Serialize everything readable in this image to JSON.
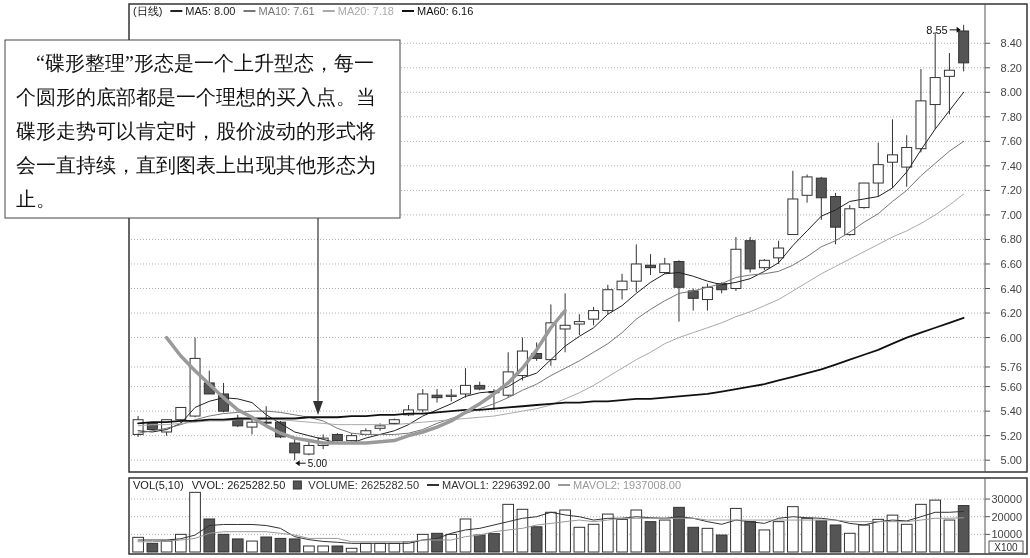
{
  "chart_data": [
    {
      "type": "candlestick",
      "title": "(日线)",
      "legend": "top left",
      "grid": "y",
      "categories": [
        null,
        null,
        null,
        null,
        null,
        null,
        null,
        null,
        null,
        null,
        null,
        null,
        null,
        null,
        null,
        null,
        null,
        null,
        null,
        null,
        null,
        null,
        null,
        null,
        null,
        null,
        null,
        null,
        null,
        null,
        null,
        null,
        null,
        null,
        null,
        null,
        null,
        null,
        null,
        null,
        null,
        null,
        null,
        null,
        null,
        null,
        null,
        null,
        null,
        null,
        null,
        null,
        null,
        null,
        null,
        null,
        null,
        null,
        null
      ],
      "ohlc": [
        [
          5.21,
          5.36,
          5.19,
          5.33
        ],
        [
          5.3,
          5.31,
          5.24,
          5.25
        ],
        [
          5.23,
          5.33,
          5.2,
          5.33
        ],
        [
          5.33,
          5.43,
          5.3,
          5.43
        ],
        [
          5.36,
          6.0,
          5.35,
          5.83
        ],
        [
          5.63,
          5.73,
          5.54,
          5.54
        ],
        [
          5.54,
          5.63,
          5.39,
          5.4
        ],
        [
          5.33,
          5.37,
          5.27,
          5.28
        ],
        [
          5.27,
          5.36,
          5.21,
          5.31
        ],
        [
          5.31,
          5.44,
          5.27,
          5.31
        ],
        [
          5.31,
          5.32,
          5.18,
          5.19
        ],
        [
          5.14,
          5.19,
          5.0,
          5.06
        ],
        [
          5.05,
          5.16,
          5.04,
          5.12
        ],
        [
          5.12,
          5.21,
          5.09,
          5.18
        ],
        [
          5.21,
          5.22,
          5.15,
          5.16
        ],
        [
          5.16,
          5.22,
          5.15,
          5.2
        ],
        [
          5.21,
          5.26,
          5.2,
          5.24
        ],
        [
          5.26,
          5.3,
          5.24,
          5.28
        ],
        [
          5.3,
          5.34,
          5.29,
          5.33
        ],
        [
          5.37,
          5.45,
          5.36,
          5.41
        ],
        [
          5.41,
          5.58,
          5.39,
          5.54
        ],
        [
          5.53,
          5.58,
          5.47,
          5.51
        ],
        [
          5.52,
          5.58,
          5.48,
          5.53
        ],
        [
          5.54,
          5.75,
          5.51,
          5.61
        ],
        [
          5.61,
          5.64,
          5.57,
          5.58
        ],
        [
          5.56,
          5.58,
          5.41,
          5.55
        ],
        [
          5.53,
          5.88,
          5.51,
          5.72
        ],
        [
          5.69,
          6.0,
          5.65,
          5.89
        ],
        [
          5.87,
          5.96,
          5.81,
          5.83
        ],
        [
          5.82,
          6.27,
          5.77,
          6.12
        ],
        [
          6.07,
          6.36,
          5.88,
          6.1
        ],
        [
          6.11,
          6.19,
          6.02,
          6.13
        ],
        [
          6.15,
          6.25,
          6.1,
          6.22
        ],
        [
          6.22,
          6.43,
          6.19,
          6.39
        ],
        [
          6.39,
          6.52,
          6.31,
          6.46
        ],
        [
          6.46,
          6.76,
          6.37,
          6.6
        ],
        [
          6.59,
          6.68,
          6.51,
          6.57
        ],
        [
          6.53,
          6.65,
          6.52,
          6.6
        ],
        [
          6.62,
          6.63,
          6.13,
          6.41
        ],
        [
          6.38,
          6.4,
          6.22,
          6.32
        ],
        [
          6.31,
          6.44,
          6.22,
          6.41
        ],
        [
          6.44,
          6.45,
          6.36,
          6.39
        ],
        [
          6.4,
          6.82,
          6.38,
          6.72
        ],
        [
          6.79,
          6.82,
          6.53,
          6.56
        ],
        [
          6.57,
          6.64,
          6.55,
          6.63
        ],
        [
          6.65,
          6.79,
          6.6,
          6.73
        ],
        [
          6.84,
          7.36,
          6.84,
          7.13
        ],
        [
          7.16,
          7.33,
          7.1,
          7.31
        ],
        [
          7.3,
          7.31,
          6.96,
          7.14
        ],
        [
          7.15,
          7.18,
          6.76,
          6.9
        ],
        [
          6.84,
          7.08,
          6.83,
          7.05
        ],
        [
          7.06,
          7.26,
          7.05,
          7.26
        ],
        [
          7.26,
          7.59,
          7.15,
          7.41
        ],
        [
          7.43,
          7.78,
          7.22,
          7.49
        ],
        [
          7.39,
          7.65,
          7.23,
          7.55
        ],
        [
          7.54,
          8.19,
          7.51,
          7.93
        ],
        [
          7.9,
          8.49,
          7.7,
          8.12
        ],
        [
          8.13,
          8.32,
          7.82,
          8.18
        ],
        [
          8.5,
          8.55,
          8.17,
          8.24
        ]
      ],
      "series": [
        {
          "name": "MA5: 8.00",
          "type": "line",
          "color": "#222222",
          "values": [
            5.24,
            5.23,
            5.25,
            5.3,
            5.43,
            5.48,
            5.51,
            5.5,
            5.47,
            5.37,
            5.3,
            5.23,
            5.2,
            5.17,
            5.14,
            5.14,
            5.18,
            5.21,
            5.24,
            5.29,
            5.36,
            5.41,
            5.46,
            5.52,
            5.55,
            5.56,
            5.6,
            5.67,
            5.71,
            5.82,
            5.93,
            6.01,
            6.08,
            6.19,
            6.26,
            6.36,
            6.45,
            6.52,
            6.53,
            6.5,
            6.46,
            6.43,
            6.45,
            6.48,
            6.54,
            6.61,
            6.75,
            6.87,
            6.99,
            7.04,
            7.11,
            7.13,
            7.15,
            7.22,
            7.35,
            7.53,
            7.7,
            7.85,
            8.0
          ]
        },
        {
          "name": "MA10: 7.61",
          "type": "line",
          "color": "#777777",
          "values": [
            5.22,
            5.24,
            5.26,
            5.29,
            5.33,
            5.36,
            5.38,
            5.39,
            5.4,
            5.4,
            5.39,
            5.37,
            5.35,
            5.32,
            5.26,
            5.22,
            5.21,
            5.21,
            5.21,
            5.22,
            5.25,
            5.3,
            5.34,
            5.38,
            5.42,
            5.46,
            5.51,
            5.57,
            5.62,
            5.69,
            5.75,
            5.81,
            5.88,
            5.95,
            6.04,
            6.15,
            6.23,
            6.3,
            6.36,
            6.38,
            6.41,
            6.44,
            6.49,
            6.51,
            6.52,
            6.54,
            6.59,
            6.66,
            6.74,
            6.79,
            6.86,
            6.94,
            7.01,
            7.11,
            7.2,
            7.32,
            7.42,
            7.52,
            7.6
          ]
        },
        {
          "name": "MA20: 7.18",
          "type": "line",
          "color": "#aaaaaa",
          "values": [
            5.28,
            5.29,
            5.29,
            5.3,
            5.31,
            5.32,
            5.32,
            5.33,
            5.33,
            5.33,
            5.33,
            5.32,
            5.31,
            5.3,
            5.29,
            5.29,
            5.29,
            5.29,
            5.29,
            5.3,
            5.31,
            5.32,
            5.33,
            5.34,
            5.35,
            5.36,
            5.38,
            5.4,
            5.42,
            5.45,
            5.5,
            5.55,
            5.61,
            5.68,
            5.75,
            5.82,
            5.88,
            5.95,
            6.0,
            6.04,
            6.08,
            6.12,
            6.17,
            6.21,
            6.26,
            6.31,
            6.38,
            6.45,
            6.52,
            6.58,
            6.64,
            6.7,
            6.76,
            6.82,
            6.87,
            6.93,
            7.0,
            7.08,
            7.17
          ]
        },
        {
          "name": "MA60: 6.16",
          "type": "line",
          "color": "#111111",
          "values": [
            5.3,
            5.31,
            5.31,
            5.32,
            5.32,
            5.33,
            5.33,
            5.34,
            5.34,
            5.34,
            5.34,
            5.34,
            5.35,
            5.35,
            5.35,
            5.36,
            5.36,
            5.37,
            5.37,
            5.38,
            5.38,
            5.39,
            5.4,
            5.41,
            5.41,
            5.42,
            5.43,
            5.44,
            5.45,
            5.46,
            5.47,
            5.47,
            5.48,
            5.48,
            5.49,
            5.5,
            5.5,
            5.51,
            5.52,
            5.53,
            5.54,
            5.56,
            5.58,
            5.6,
            5.62,
            5.65,
            5.68,
            5.71,
            5.74,
            5.78,
            5.82,
            5.86,
            5.9,
            5.95,
            6.0,
            6.04,
            6.08,
            6.12,
            6.16
          ]
        },
        {
          "type": "line",
          "color": "#9a9a9a",
          "values": [
            null,
            null,
            6.0,
            5.85,
            5.73,
            5.62,
            5.51,
            5.41,
            5.35,
            5.28,
            5.22,
            5.18,
            5.16,
            5.14,
            5.14,
            5.14,
            5.14,
            5.15,
            5.16,
            5.2,
            5.23,
            5.27,
            5.32,
            5.39,
            5.46,
            5.54,
            5.63,
            5.75,
            5.9,
            6.08,
            6.22,
            null,
            null,
            null,
            null,
            null,
            null,
            null,
            null,
            null,
            null,
            null,
            null,
            null,
            null,
            null,
            null,
            null,
            null,
            null,
            null,
            null,
            null,
            null,
            null,
            null,
            null,
            null,
            null
          ]
        }
      ],
      "ylim": [
        4.92,
        8.72
      ],
      "yticks": [
        {
          "value": 5,
          "label": "5.00"
        },
        {
          "value": 5.2,
          "label": "5.20"
        },
        {
          "value": 5.4,
          "label": "5.40"
        },
        {
          "value": 5.6,
          "label": "5.60"
        },
        {
          "value": 5.76,
          "label": "5.76"
        },
        {
          "value": 6,
          "label": "6.00"
        },
        {
          "value": 6.2,
          "label": "6.20"
        },
        {
          "value": 6.4,
          "label": "6.40"
        },
        {
          "value": 6.6,
          "label": "6.60"
        },
        {
          "value": 6.8,
          "label": "6.80"
        },
        {
          "value": 7,
          "label": "7.00"
        },
        {
          "value": 7.2,
          "label": "7.20"
        },
        {
          "value": 7.4,
          "label": "7.40"
        },
        {
          "value": 7.6,
          "label": "7.60"
        },
        {
          "value": 7.8,
          "label": "7.80"
        },
        {
          "value": 8,
          "label": "8.00"
        },
        {
          "value": 8.2,
          "label": "8.20"
        },
        {
          "value": 8.4,
          "label": "8.40"
        }
      ],
      "annotations": [
        "“碟形整理”形态是一个上升型态，每一个圆形的底部都是一个理想的买入点。当碟形走势可以肯定时，股价波动的形式将会一直持续，直到图表上出现其他形态为止。",
        "5.00",
        "8.55"
      ]
    },
    {
      "type": "bar",
      "title": "VOL(5,10)",
      "subtitle": "VVOL: 2625282.50",
      "legend": "top left",
      "grid": "y",
      "ylabel": "X100",
      "categories": [
        null,
        null,
        null,
        null,
        null,
        null,
        null,
        null,
        null,
        null,
        null,
        null,
        null,
        null,
        null,
        null,
        null,
        null,
        null,
        null,
        null,
        null,
        null,
        null,
        null,
        null,
        null,
        null,
        null,
        null,
        null,
        null,
        null,
        null,
        null,
        null,
        null,
        null,
        null,
        null,
        null,
        null,
        null,
        null,
        null,
        null,
        null,
        null,
        null,
        null,
        null,
        null,
        null,
        null,
        null,
        null,
        null,
        null,
        null
      ],
      "series": [
        {
          "name": "VOLUME: 2625282.50",
          "type": "bar",
          "colors": [
            "#ffffff",
            "#555555",
            "#ffffff",
            "#ffffff",
            "#ffffff",
            "#555555",
            "#555555",
            "#555555",
            "#ffffff",
            "#555555",
            "#555555",
            "#555555",
            "#ffffff",
            "#ffffff",
            "#555555",
            "#ffffff",
            "#ffffff",
            "#ffffff",
            "#ffffff",
            "#ffffff",
            "#ffffff",
            "#555555",
            "#ffffff",
            "#ffffff",
            "#555555",
            "#555555",
            "#ffffff",
            "#ffffff",
            "#555555",
            "#ffffff",
            "#ffffff",
            "#ffffff",
            "#ffffff",
            "#ffffff",
            "#ffffff",
            "#ffffff",
            "#555555",
            "#ffffff",
            "#555555",
            "#555555",
            "#ffffff",
            "#555555",
            "#ffffff",
            "#555555",
            "#ffffff",
            "#ffffff",
            "#ffffff",
            "#ffffff",
            "#555555",
            "#555555",
            "#ffffff",
            "#ffffff",
            "#ffffff",
            "#ffffff",
            "#ffffff",
            "#ffffff",
            "#ffffff",
            "#ffffff",
            "#555555"
          ],
          "values": [
            8300,
            4900,
            6200,
            10000,
            33800,
            18700,
            10000,
            7400,
            6200,
            8500,
            7700,
            7400,
            3400,
            3400,
            3400,
            2100,
            4900,
            4900,
            4900,
            5800,
            10000,
            10600,
            10000,
            18700,
            9600,
            10400,
            27000,
            24200,
            14300,
            22500,
            23800,
            14000,
            15700,
            21500,
            18500,
            23800,
            17200,
            18100,
            25300,
            14000,
            13400,
            9600,
            24700,
            17200,
            12500,
            17200,
            25700,
            19100,
            17700,
            15300,
            10600,
            15300,
            18500,
            20900,
            15700,
            27000,
            29400,
            18100,
            26300
          ]
        },
        {
          "name": "MAVOL1: 2296392.00",
          "type": "line",
          "color": "#333333",
          "values": [
            6800,
            6800,
            6800,
            7500,
            9600,
            15000,
            15600,
            15600,
            15600,
            15000,
            13400,
            8700,
            7000,
            6000,
            5500,
            4900,
            4900,
            4900,
            4900,
            4900,
            6800,
            7700,
            10600,
            12500,
            13400,
            15300,
            17200,
            19100,
            20000,
            22500,
            21000,
            20000,
            18100,
            19100,
            19100,
            20000,
            19400,
            19100,
            20000,
            19100,
            17200,
            15700,
            18100,
            17200,
            16200,
            19100,
            20000,
            19400,
            19100,
            18100,
            16200,
            15300,
            17200,
            18100,
            17600,
            20000,
            22500,
            22500,
            23000
          ]
        },
        {
          "name": "MAVOL2: 1937008.00",
          "type": "line",
          "color": "#999999",
          "values": [
            5800,
            5800,
            6200,
            6800,
            7700,
            10600,
            11500,
            11500,
            11500,
            11500,
            10600,
            9600,
            7700,
            7700,
            7700,
            5800,
            5800,
            5800,
            5800,
            5800,
            6800,
            6800,
            6800,
            8700,
            9600,
            11500,
            12500,
            13400,
            15300,
            16200,
            17200,
            18100,
            17200,
            18100,
            19100,
            19100,
            19100,
            19100,
            19100,
            19100,
            18100,
            18100,
            18100,
            18100,
            18100,
            18100,
            18100,
            18100,
            18100,
            18100,
            17200,
            17200,
            17200,
            17200,
            17200,
            18100,
            19100,
            19100,
            19400
          ]
        }
      ],
      "ylim": [
        0,
        34000
      ],
      "yticks": [
        10000,
        20000,
        30000
      ]
    }
  ]
}
